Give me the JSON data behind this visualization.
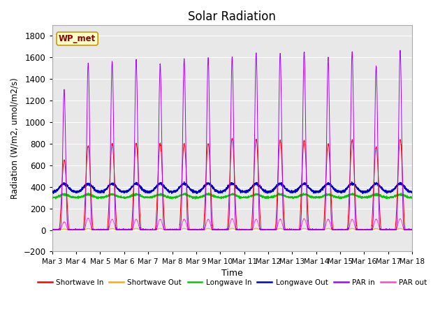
{
  "title": "Solar Radiation",
  "ylabel": "Radiation (W/m2, umol/m2/s)",
  "xlabel": "Time",
  "station_label": "WP_met",
  "ylim": [
    -200,
    1900
  ],
  "yticks": [
    -200,
    0,
    200,
    400,
    600,
    800,
    1000,
    1200,
    1400,
    1600,
    1800
  ],
  "n_days": 15,
  "samples_per_day": 288,
  "series_colors": {
    "shortwave_in": "#ff0000",
    "shortwave_out": "#ffaa00",
    "longwave_in": "#00cc00",
    "longwave_out": "#0000cc",
    "par_in": "#aa00ff",
    "par_out": "#ff44cc"
  },
  "legend_labels": [
    "Shortwave In",
    "Shortwave Out",
    "Longwave In",
    "Longwave Out",
    "PAR in",
    "PAR out"
  ],
  "bg_color": "#e8e8e8",
  "fig_bg": "#ffffff",
  "shortwave_in_peaks": [
    650,
    780,
    800,
    800,
    800,
    800,
    800,
    850,
    840,
    830,
    830,
    800,
    830,
    770,
    840
  ],
  "par_in_peaks": [
    1300,
    1550,
    1560,
    1580,
    1540,
    1590,
    1600,
    1610,
    1640,
    1640,
    1650,
    1590,
    1650,
    1520,
    1670
  ],
  "par_out_peaks": [
    75,
    110,
    100,
    100,
    100,
    100,
    100,
    105,
    100,
    100,
    105,
    100,
    100,
    100,
    105
  ],
  "shortwave_out_peaks": [
    10,
    14,
    15,
    15,
    15,
    15,
    15,
    16,
    16,
    15,
    15,
    15,
    15,
    14,
    15
  ],
  "longwave_out_base": 350,
  "longwave_in_base": 300
}
